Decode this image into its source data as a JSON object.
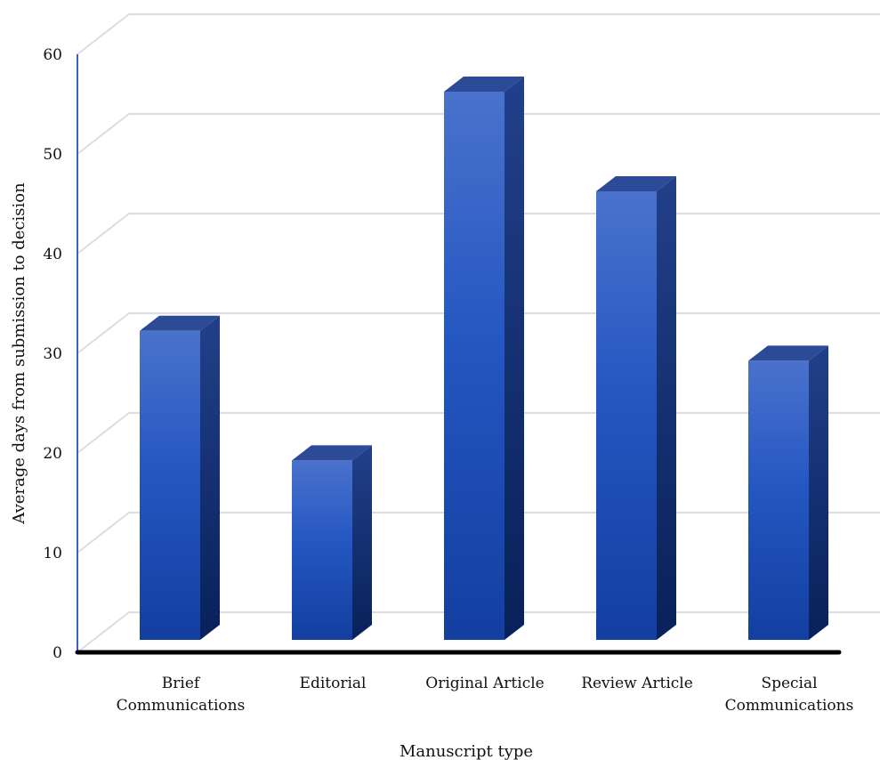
{
  "chart_data": {
    "type": "bar",
    "title": "",
    "xlabel": "Manuscript type",
    "ylabel": "Average days from submission to decision",
    "categories": [
      [
        "Brief",
        "Communications"
      ],
      [
        "Editorial"
      ],
      [
        "Original Article"
      ],
      [
        "Review Article"
      ],
      [
        "Special",
        "Communications"
      ]
    ],
    "values": [
      31,
      18,
      55,
      45,
      28
    ],
    "ylim": [
      0,
      60
    ],
    "yticks": [
      "0",
      "10",
      "20",
      "30",
      "40",
      "50",
      "60"
    ],
    "grid": true,
    "legend": "none",
    "colors": {
      "bar_front_top": "#4a72cc",
      "bar_front_mid": "#2457c2",
      "bar_front_bottom": "#123fa0",
      "bar_side_top": "#22408a",
      "bar_side_bottom": "#08215a",
      "bar_top": "#2c4a96",
      "grid": "#dcdce6",
      "y_axis": "#3a64c4",
      "x_axis": "#000000"
    }
  }
}
